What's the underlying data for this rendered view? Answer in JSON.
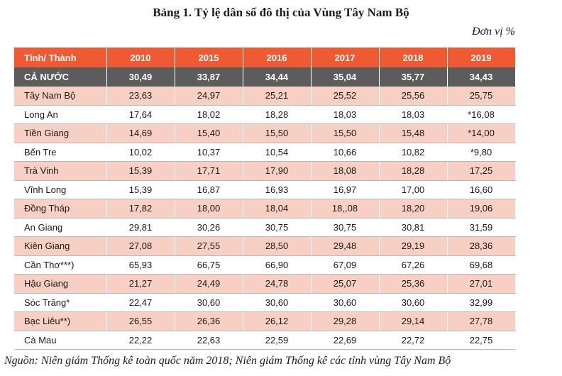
{
  "title": "Bảng 1. Tỷ lệ dân số đô thị của Vùng Tây Nam Bộ",
  "unit": "Đơn vị %",
  "table": {
    "headers": [
      "Tỉnh/ Thành",
      "2010",
      "2015",
      "2016",
      "2017",
      "2018",
      "2019"
    ],
    "rows": [
      {
        "name": "CẢ NƯỚC",
        "values": [
          "30,49",
          "33,87",
          "34,44",
          "35,04",
          "35,77",
          "34,43"
        ]
      },
      {
        "name": "Tây Nam Bộ",
        "values": [
          "23,63",
          "24,97",
          "25,21",
          "25,52",
          "25,56",
          "25,75"
        ]
      },
      {
        "name": "Long An",
        "values": [
          "17,64",
          "18,02",
          "18,28",
          "18,03",
          "18,03",
          "*16,08"
        ]
      },
      {
        "name": "Tiền Giang",
        "values": [
          "14,69",
          "15,40",
          "15,50",
          "15,50",
          "15,48",
          "*14,00"
        ]
      },
      {
        "name": "Bến Tre",
        "values": [
          "10,02",
          "10,37",
          "10,54",
          "10,66",
          "10,82",
          "*9,80"
        ]
      },
      {
        "name": "Trà Vinh",
        "values": [
          "15,39",
          "17,71",
          "17,90",
          "18,08",
          "18,28",
          "17,25"
        ]
      },
      {
        "name": "Vĩnh Long",
        "values": [
          "15,39",
          "16,87",
          "16,93",
          "16,97",
          "17,00",
          "16,60"
        ]
      },
      {
        "name": "Đồng Tháp",
        "values": [
          "17,82",
          "18,00",
          "18,04",
          "18,,08",
          "18,20",
          "19,06"
        ]
      },
      {
        "name": "An Giang",
        "values": [
          "29,81",
          "30,26",
          "30,75",
          "30,75",
          "30,81",
          "31,59"
        ]
      },
      {
        "name": "Kiên Giang",
        "values": [
          "27,08",
          "27,55",
          "28,50",
          "29,48",
          "29,19",
          "28,36"
        ]
      },
      {
        "name": "Cần Thơ***)",
        "values": [
          "65,93",
          "66,75",
          "66,90",
          "67,09",
          "67,26",
          "69,68"
        ]
      },
      {
        "name": "Hậu Giang",
        "values": [
          "21,27",
          "24,49",
          "24,78",
          "25,07",
          "25,36",
          "27,01"
        ]
      },
      {
        "name": "Sóc Trăng*",
        "values": [
          "22,47",
          "30,60",
          "30,60",
          "30,60",
          "30,60",
          "32,99"
        ]
      },
      {
        "name": "Bạc Liêu**)",
        "values": [
          "26,55",
          "26,36",
          "26,12",
          "29,28",
          "29,14",
          "27,78"
        ]
      },
      {
        "name": "Cà Mau",
        "values": [
          "22,22",
          "22,63",
          "22,59",
          "22,69",
          "22,72",
          "22,75"
        ]
      }
    ]
  },
  "source": "Nguồn: Niên giám Thống kê toàn quốc năm 2018; Niên giám Thống kê các tỉnh vùng Tây Nam Bộ",
  "colors": {
    "header_bg": "#ef5a33",
    "nation_row_bg": "#5c5c5c",
    "stripe_bg": "#f8d0c3"
  }
}
